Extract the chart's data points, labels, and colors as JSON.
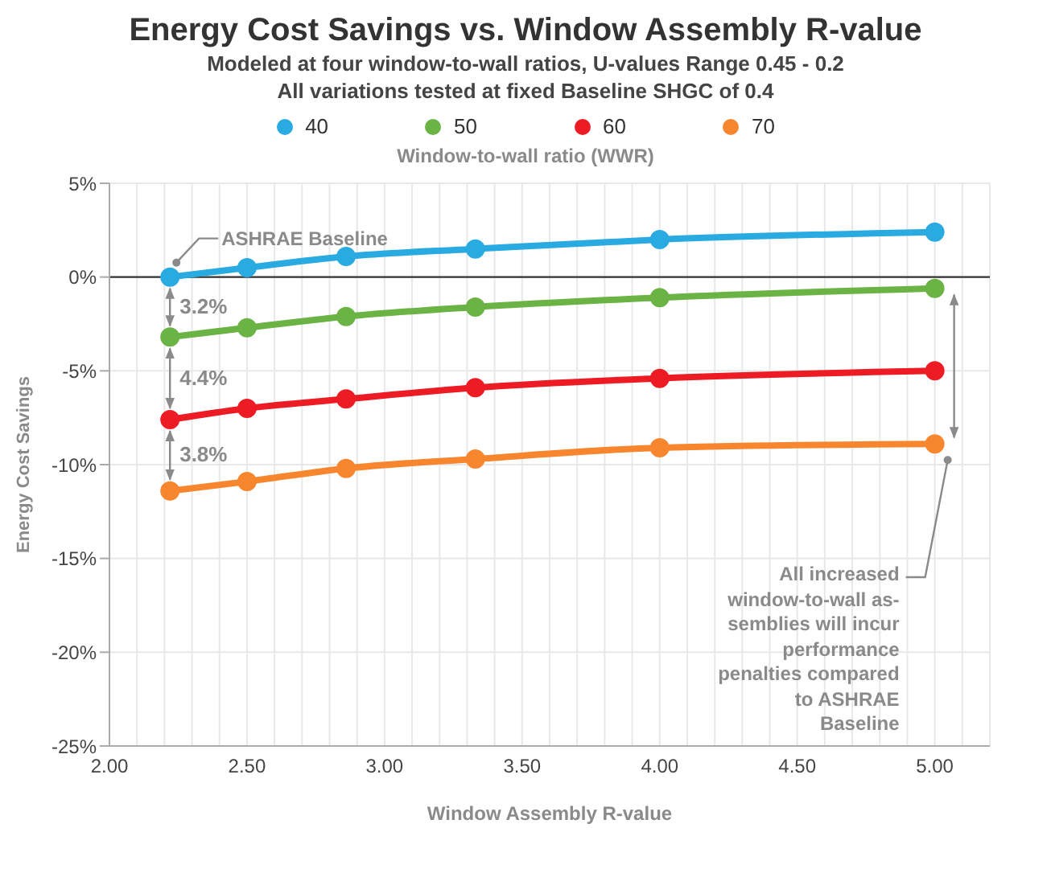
{
  "chart_data": {
    "type": "line",
    "title": "Energy Cost Savings vs. Window Assembly R-value",
    "subtitle": "Modeled at four window-to-wall ratios, U-values Range 0.45 - 0.2\nAll variations tested at fixed Baseline SHGC of 0.4",
    "xlabel": "Window Assembly R-value",
    "ylabel": "Energy Cost Savings",
    "legend_title": "Window-to-wall ratio (WWR)",
    "legend": "top",
    "grid": true,
    "marker": "circle",
    "line_style": "solid",
    "x": [
      2.22,
      2.5,
      2.86,
      3.33,
      4.0,
      5.0
    ],
    "series": [
      {
        "name": "40",
        "color": "#29abe2",
        "values": [
          0,
          0.5,
          1.1,
          1.5,
          2.0,
          2.4
        ]
      },
      {
        "name": "50",
        "color": "#6ab344",
        "values": [
          -3.2,
          -2.7,
          -2.1,
          -1.6,
          -1.1,
          -0.6
        ]
      },
      {
        "name": "60",
        "color": "#ed1c24",
        "values": [
          -7.6,
          -7.0,
          -6.5,
          -5.9,
          -5.4,
          -5.0
        ]
      },
      {
        "name": "70",
        "color": "#f7862f",
        "values": [
          -11.4,
          -10.9,
          -10.2,
          -9.7,
          -9.1,
          -8.9
        ]
      }
    ],
    "xlim": [
      2,
      5.2
    ],
    "xticks": [
      {
        "value": 2,
        "label": "2.00"
      },
      {
        "value": 2.1,
        "label": null
      },
      {
        "value": 2.2,
        "label": null
      },
      {
        "value": 2.3,
        "label": null
      },
      {
        "value": 2.4,
        "label": null
      },
      {
        "value": 2.5,
        "label": "2.50"
      },
      {
        "value": 2.6,
        "label": null
      },
      {
        "value": 2.7,
        "label": null
      },
      {
        "value": 2.8,
        "label": null
      },
      {
        "value": 2.9,
        "label": null
      },
      {
        "value": 3,
        "label": "3.00"
      },
      {
        "value": 3.1,
        "label": null
      },
      {
        "value": 3.2,
        "label": null
      },
      {
        "value": 3.3,
        "label": null
      },
      {
        "value": 3.4,
        "label": null
      },
      {
        "value": 3.5,
        "label": "3.50"
      },
      {
        "value": 3.6,
        "label": null
      },
      {
        "value": 3.7,
        "label": null
      },
      {
        "value": 3.8,
        "label": null
      },
      {
        "value": 3.9,
        "label": null
      },
      {
        "value": 4,
        "label": "4.00"
      },
      {
        "value": 4.1,
        "label": null
      },
      {
        "value": 4.2,
        "label": null
      },
      {
        "value": 4.3,
        "label": null
      },
      {
        "value": 4.4,
        "label": null
      },
      {
        "value": 4.5,
        "label": "4.50"
      },
      {
        "value": 4.6,
        "label": null
      },
      {
        "value": 4.7,
        "label": null
      },
      {
        "value": 4.8,
        "label": null
      },
      {
        "value": 4.9,
        "label": null
      },
      {
        "value": 5,
        "label": "5.00"
      },
      {
        "value": 5.1,
        "label": null
      },
      {
        "value": 5.2,
        "label": null
      }
    ],
    "ylim": [
      -25,
      5
    ],
    "yticks": [
      {
        "value": -25,
        "label": "-25%"
      },
      {
        "value": -20,
        "label": "-20%"
      },
      {
        "value": -15,
        "label": "-15%"
      },
      {
        "value": -10,
        "label": "-10%"
      },
      {
        "value": -5,
        "label": "-5%"
      },
      {
        "value": 0,
        "label": "0%"
      },
      {
        "value": 5,
        "label": "5%"
      }
    ],
    "ref_lines": [
      {
        "axis": "y",
        "value": 0,
        "label": null,
        "color": "#333333"
      }
    ],
    "annotations": [
      "ASHRAE Baseline",
      "3.2%",
      "4.4%",
      "3.8%",
      "All increased window-to-wall as-semblies will incur performance penalties compared to ASHRAE Baseline"
    ]
  }
}
